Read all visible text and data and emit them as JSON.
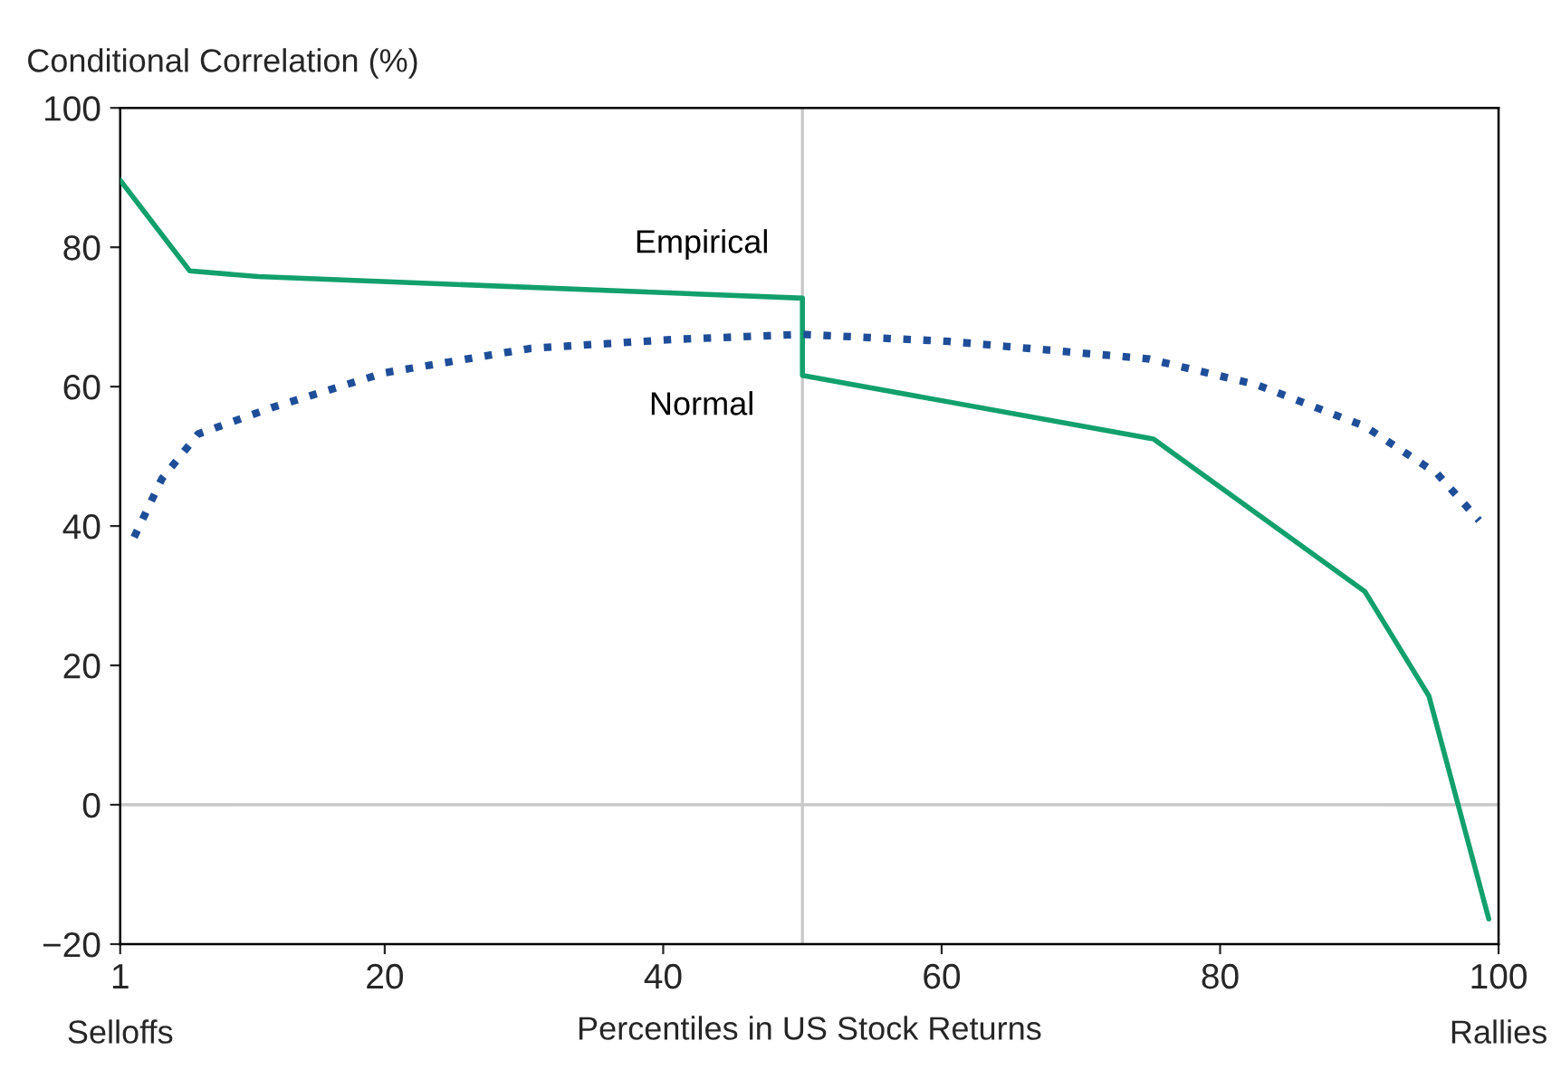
{
  "chart_data": {
    "type": "line",
    "ylabel": "Conditional Correlation (%)",
    "xlabel": "Percentiles in US Stock Returns",
    "annotations": [
      "Selloffs",
      "Rallies"
    ],
    "xlim": [
      1,
      100
    ],
    "xticks": [
      1,
      20,
      40,
      60,
      80,
      100
    ],
    "ylim": [
      -20,
      100
    ],
    "yticks": [
      -20,
      0,
      20,
      40,
      60,
      80,
      100
    ],
    "grid": false,
    "legend": false,
    "ref_lines": [
      {
        "axis": "x",
        "value": 50,
        "color": "#c8c8c8"
      },
      {
        "axis": "y",
        "value": 0,
        "color": "#c8c8c8"
      }
    ],
    "series": [
      {
        "name": "Empirical",
        "color": "#12a06c",
        "line_style": "solid",
        "x": [
          1,
          6,
          10.9,
          50,
          50,
          75.2,
          90.4,
          95,
          99.3
        ],
        "values": [
          89.6,
          76.6,
          75.8,
          72.7,
          61.6,
          52.5,
          30.6,
          15.6,
          -16.4
        ]
      },
      {
        "name": "Normal",
        "color": "#1f4e99",
        "line_style": "dotted",
        "x": [
          2,
          4,
          6.6,
          11.9,
          20,
          30.5,
          41,
          50,
          60.5,
          74.8,
          82.6,
          90.4,
          95.6,
          98.6
        ],
        "values": [
          38.4,
          46.8,
          53.2,
          57,
          62,
          65.5,
          66.8,
          67.5,
          66.5,
          64,
          60.3,
          54.3,
          47.5,
          40.8
        ]
      }
    ]
  }
}
